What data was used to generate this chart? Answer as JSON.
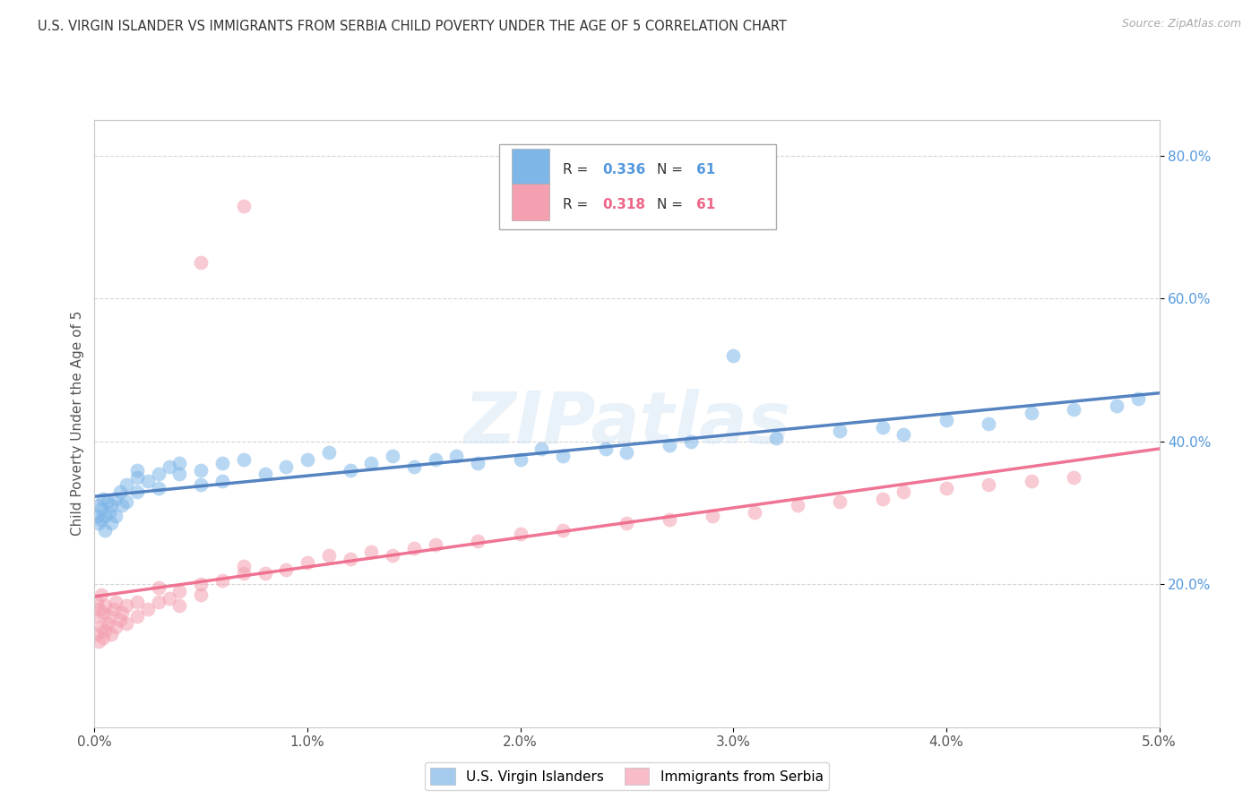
{
  "title": "U.S. VIRGIN ISLANDER VS IMMIGRANTS FROM SERBIA CHILD POVERTY UNDER THE AGE OF 5 CORRELATION CHART",
  "source": "Source: ZipAtlas.com",
  "ylabel": "Child Poverty Under the Age of 5",
  "legend_label1": "U.S. Virgin Islanders",
  "legend_label2": "Immigrants from Serbia",
  "r1": "0.336",
  "n1": "61",
  "r2": "0.318",
  "n2": "61",
  "color1": "#7EB6E8",
  "color2": "#F4A0B0",
  "trendline1_color": "#4477BB",
  "trendline2_color": "#EE6688",
  "watermark": "ZIPatlas",
  "background_color": "#ffffff",
  "grid_color": "#cccccc",
  "right_tick_color": "#5599DD",
  "ytick_labels": [
    "20.0%",
    "40.0%",
    "60.0%",
    "80.0%"
  ],
  "ytick_positions": [
    0.2,
    0.4,
    0.6,
    0.8
  ],
  "xtick_labels": [
    "0.0%",
    "1.0%",
    "2.0%",
    "3.0%",
    "4.0%",
    "5.0%"
  ],
  "xtick_positions": [
    0.0,
    0.01,
    0.02,
    0.03,
    0.04,
    0.05
  ]
}
